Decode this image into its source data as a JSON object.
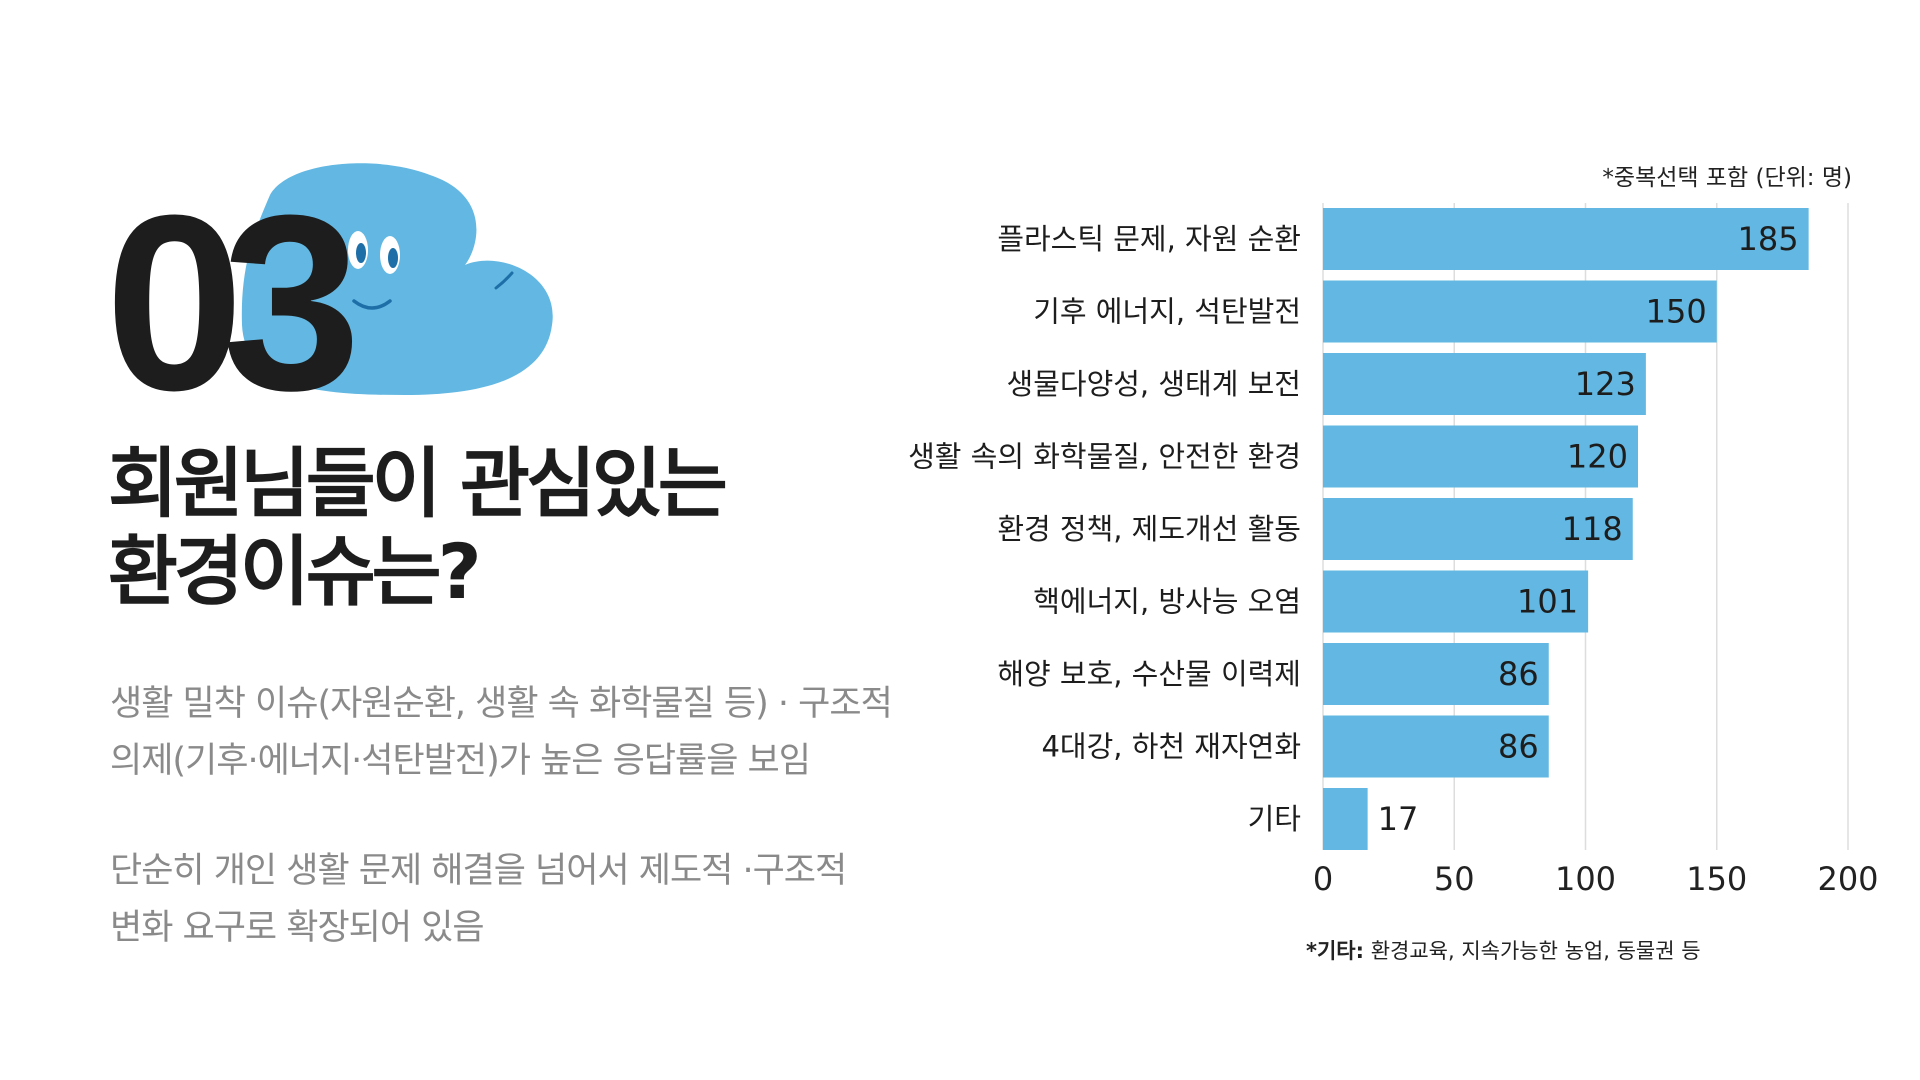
{
  "section_number": "03",
  "title_lines": [
    "회원님들이 관심있는",
    "환경이슈는?"
  ],
  "description_1": [
    "생활 밀착 이슈(자원순환, 생활 속 화학물질 등) · 구조적",
    "의제(기후·에너지·석탄발전)가 높은 응답률을 보임"
  ],
  "description_2": [
    "단순히 개인 생활 문제 해결을 넘어서 제도적 ·구조적",
    "변화 요구로 확장되어 있음"
  ],
  "colors": {
    "bar": "#62b8e2",
    "blob": "#62b8e2",
    "text_dark": "#1d1d1d",
    "text_gray": "#8a8a8a",
    "grid": "#dddddd"
  },
  "chart_data": {
    "type": "bar",
    "orientation": "horizontal",
    "categories": [
      "플라스틱 문제, 자원 순환",
      "기후 에너지, 석탄발전",
      "생물다양성, 생태계 보전",
      "생활 속의 화학물질, 안전한 환경",
      "환경 정책, 제도개선 활동",
      "핵에너지, 방사능 오염",
      "해양 보호, 수산물 이력제",
      "4대강, 하천 재자연화",
      "기타"
    ],
    "values": [
      185,
      150,
      123,
      120,
      118,
      101,
      86,
      86,
      17
    ],
    "xlim": [
      0,
      200
    ],
    "x_ticks": [
      0,
      50,
      100,
      150,
      200
    ],
    "grid": "vertical",
    "note_top": "*중복선택 포함 (단위: 명)",
    "note_bottom_label": "*기타:",
    "note_bottom_text": " 환경교육,  지속가능한 농업,  동물권 등"
  }
}
